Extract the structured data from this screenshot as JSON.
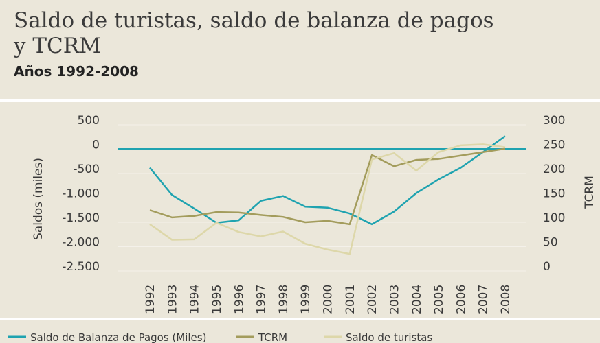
{
  "chart_data": {
    "type": "line",
    "title": [
      "Saldo de turistas, saldo de balanza de pagos",
      "y TCRM"
    ],
    "subtitle": "Años 1992-2008",
    "y_label": "Saldos (miles)",
    "y2_label": "TCRM",
    "categories": [
      "1992",
      "1993",
      "1994",
      "1995",
      "1996",
      "1997",
      "1998",
      "1999",
      "2000",
      "2001",
      "2002",
      "2003",
      "2004",
      "2005",
      "2006",
      "2007",
      "2008"
    ],
    "ylim": [
      -2500,
      500
    ],
    "yticks": [
      500,
      0,
      -500,
      {
        "value": -1000,
        "label": "-1.000"
      },
      {
        "value": -1500,
        "label": "-1.500"
      },
      {
        "value": -2000,
        "label": "-2.000"
      },
      {
        "value": -2500,
        "label": "-2.500"
      }
    ],
    "y2lim": [
      0,
      300
    ],
    "y2ticks": [
      300,
      250,
      200,
      150,
      100,
      50,
      0
    ],
    "grid": true,
    "series": [
      {
        "name": "Saldo de Balanza de Pagos (Miles)",
        "color": "#1fa3b0",
        "values": [
          -380,
          -940,
          -1220,
          -1510,
          -1460,
          -1060,
          -960,
          -1180,
          -1200,
          -1320,
          -1540,
          -1280,
          -900,
          -620,
          -380,
          -60,
          270
        ]
      },
      {
        "name": "TCRM",
        "color": "#a39c5c",
        "axis": "y2",
        "values": [
          125,
          110,
          113,
          121,
          120,
          115,
          111,
          100,
          103,
          96,
          238,
          215,
          228,
          230,
          237,
          244,
          251
        ]
      },
      {
        "name": "Saldo de turistas",
        "color": "#ddd7a9",
        "values": [
          -1540,
          -1860,
          -1850,
          -1510,
          -1700,
          -1790,
          -1690,
          -1940,
          -2060,
          -2150,
          -210,
          -80,
          -440,
          -60,
          80,
          100,
          40
        ]
      }
    ]
  }
}
